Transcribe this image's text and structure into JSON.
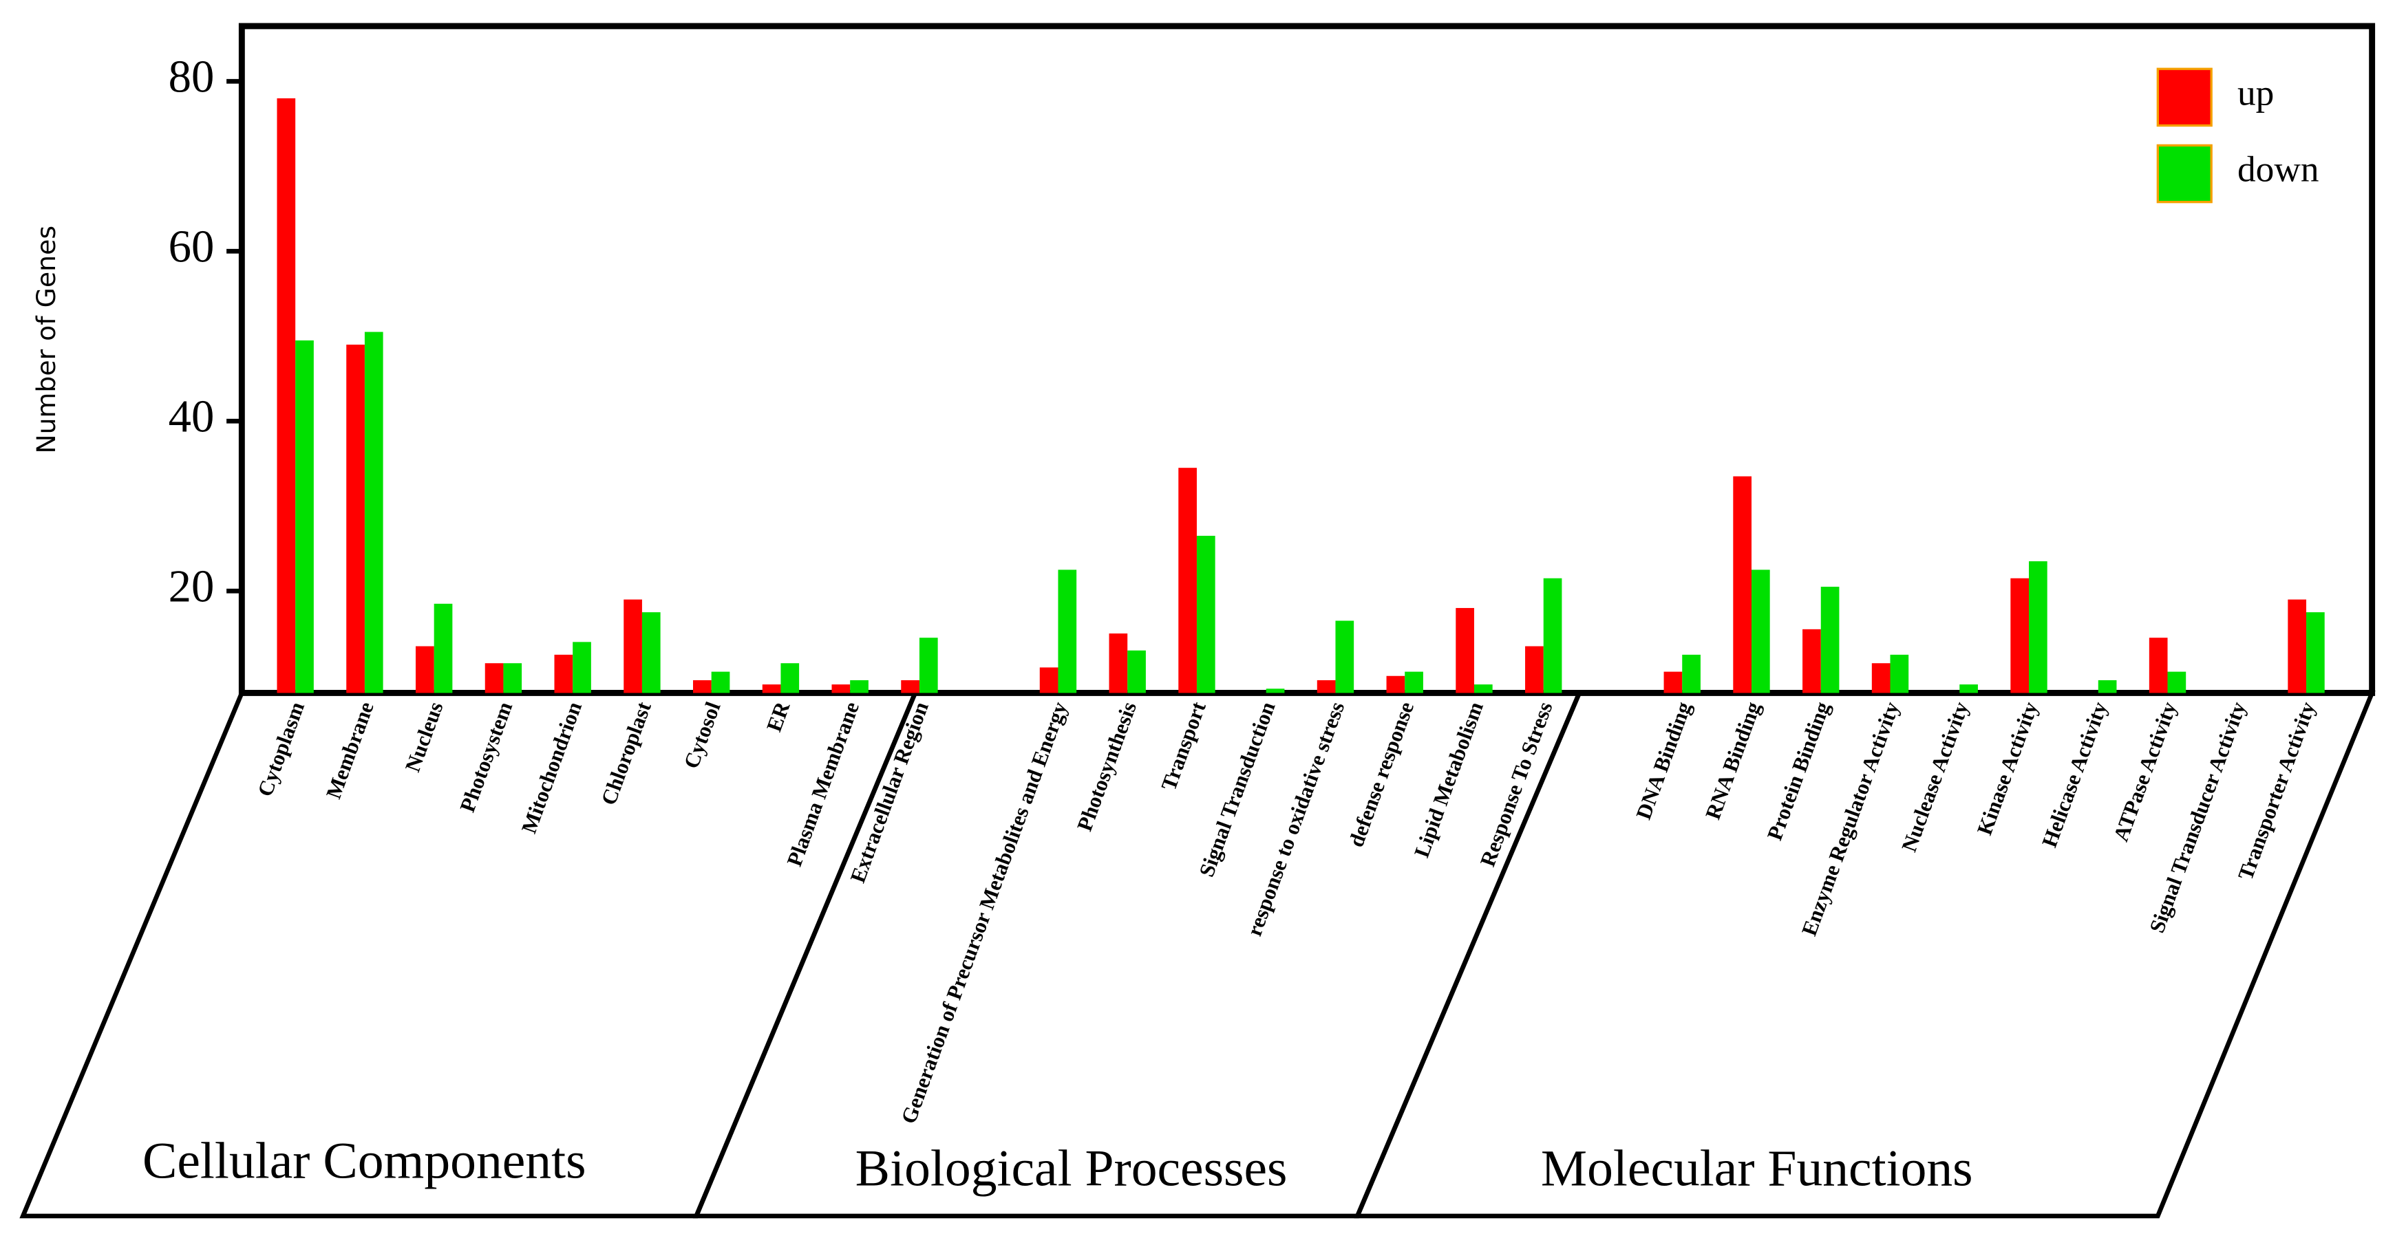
{
  "chart_data": {
    "type": "bar",
    "y_label": "Number of Genes",
    "categories": [
      "Cytoplasm",
      "Membrane",
      "Nucleus",
      "Photosystem",
      "Mitochondrion",
      "Chloroplast",
      "Cytosol",
      "ER",
      "Plasma Membrane",
      "Extracellular Region",
      null,
      "Generation of Precursor Metabolites and Energy",
      "Photosynthesis",
      "Transport",
      "Signal Transduction",
      "response to oxidative stress",
      "defense response",
      "Lipid Metabolism",
      "Response To Stress",
      null,
      "DNA Binding",
      "RNA Binding",
      "Protein Binding",
      "Enzyme Regulator Activity",
      "Nuclease Activity",
      "Kinase Activity",
      "Helicase Activity",
      "ATPase Activity",
      "Signal Transducer Activity",
      "Transporter Activity"
    ],
    "groups": [
      "Cellular Components",
      "Biological Processes",
      "Molecular Functions"
    ],
    "series": [
      {
        "name": "up",
        "color": "#ff0000",
        "values": [
          78,
          49,
          13.5,
          11.5,
          12.5,
          19,
          9.5,
          9,
          9,
          9.5,
          null,
          11,
          15,
          34.5,
          null,
          9.5,
          10,
          18,
          13.5,
          null,
          10.5,
          33.5,
          15.5,
          11.5,
          null,
          21.5,
          null,
          14.5,
          null,
          19
        ]
      },
      {
        "name": "down",
        "color": "#00e000",
        "values": [
          49.5,
          50.5,
          18.5,
          11.5,
          14,
          17.5,
          10.5,
          11.5,
          9.5,
          14.5,
          null,
          22.5,
          13,
          26.5,
          8.5,
          16.5,
          10.5,
          9,
          21.5,
          null,
          12.5,
          22.5,
          20.5,
          12.5,
          9,
          23.5,
          9.5,
          10.5,
          null,
          17.5
        ]
      }
    ],
    "ylim": [
      8,
      86.5
    ],
    "yticks": [
      20,
      40,
      60,
      80
    ],
    "legend": "upper right"
  }
}
